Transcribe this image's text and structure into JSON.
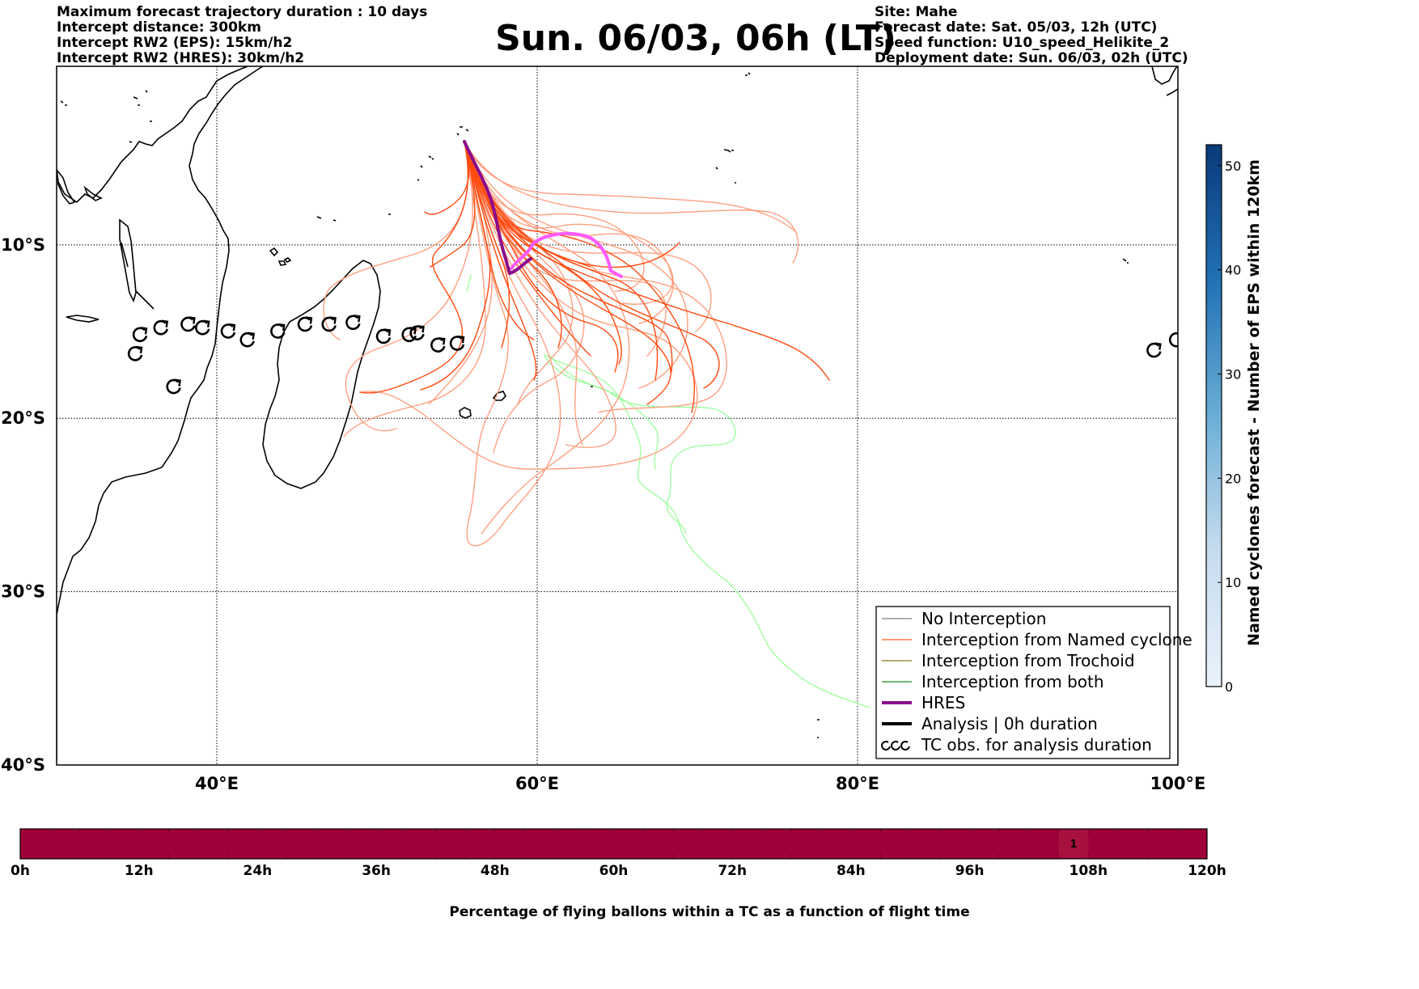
{
  "header": {
    "left": [
      "Maximum forecast trajectory duration : 10 days",
      "Intercept distance: 300km",
      "Intercept RW2 (EPS):  15km/h2",
      "Intercept RW2 (HRES): 30km/h2"
    ],
    "title": "Sun. 06/03, 06h (LT)",
    "right": [
      "Site: Mahe",
      "Forecast date: Sat. 05/03, 12h (UTC)",
      "Speed function: U10_speed_Helikite_2",
      "Deployment date: Sun. 06/03, 02h (UTC)"
    ]
  },
  "map": {
    "lat_labels": [
      {
        "lat": -10,
        "label": "10°S"
      },
      {
        "lat": -20,
        "label": "20°S"
      },
      {
        "lat": -30,
        "label": "30°S"
      },
      {
        "lat": -40,
        "label": "40°S"
      }
    ],
    "lon_labels": [
      {
        "lon": 40,
        "label": "40°E"
      },
      {
        "lon": 60,
        "label": "60°E"
      },
      {
        "lon": 80,
        "label": "80°E"
      },
      {
        "lon": 100,
        "label": "100°E"
      }
    ],
    "extent": {
      "lon_min": 30,
      "lon_max": 100,
      "lat_min": -40,
      "lat_max": 0.3
    },
    "site": {
      "name": "Mahe",
      "lon": 55.5,
      "lat": -4.6
    }
  },
  "colorbar": {
    "label": "Named cyclones forecast - Number of EPS within 120km",
    "min": 0,
    "max": 52,
    "ticks": [
      "0",
      "10",
      "20",
      "30",
      "40",
      "50"
    ],
    "color_low": "#eaf2fb",
    "color_high": "#0a3a7a"
  },
  "legend": {
    "items": [
      {
        "label": "No Interception",
        "color": "#808080",
        "style": "thin"
      },
      {
        "label": "Interception from Named cyclone",
        "color": "#ff5a1a",
        "style": "thin"
      },
      {
        "label": "Interception from Trochoid",
        "color": "#8b7a1a",
        "style": "thin"
      },
      {
        "label": "Interception from both",
        "color": "#1a8a1a",
        "style": "thin"
      },
      {
        "label": "HRES",
        "color": "#8b0a8b",
        "style": "thick"
      },
      {
        "label": "Analysis | 0h duration",
        "color": "#000000",
        "style": "thick"
      },
      {
        "label": "TC obs. for analysis duration",
        "color": "#000000",
        "style": "symbol"
      }
    ]
  },
  "tc_observations": [
    {
      "lon": 34.9,
      "lat": -16.3
    },
    {
      "lon": 35.2,
      "lat": -15.2
    },
    {
      "lon": 36.5,
      "lat": -14.8
    },
    {
      "lon": 38.2,
      "lat": -14.6
    },
    {
      "lon": 39.1,
      "lat": -14.8
    },
    {
      "lon": 40.7,
      "lat": -15.0
    },
    {
      "lon": 41.9,
      "lat": -15.5
    },
    {
      "lon": 43.8,
      "lat": -15.0
    },
    {
      "lon": 45.5,
      "lat": -14.6
    },
    {
      "lon": 47.0,
      "lat": -14.6
    },
    {
      "lon": 48.5,
      "lat": -14.5
    },
    {
      "lon": 50.4,
      "lat": -15.3
    },
    {
      "lon": 52.0,
      "lat": -15.2
    },
    {
      "lon": 52.5,
      "lat": -15.1
    },
    {
      "lon": 53.8,
      "lat": -15.8
    },
    {
      "lon": 55.0,
      "lat": -15.7
    },
    {
      "lon": 37.3,
      "lat": -18.2
    },
    {
      "lon": 98.5,
      "lat": -16.1
    },
    {
      "lon": 99.9,
      "lat": -15.5
    }
  ],
  "timebar": {
    "title": "Percentage of flying ballons within a TC as a function of flight time",
    "labels": [
      "0h",
      "12h",
      "24h",
      "36h",
      "48h",
      "60h",
      "72h",
      "84h",
      "96h",
      "108h",
      "120h"
    ],
    "highlight_label": "1",
    "highlight_start_h": 105,
    "highlight_end_h": 108,
    "bar_color": "#a0003a",
    "highlight_color": "#a8103e"
  }
}
